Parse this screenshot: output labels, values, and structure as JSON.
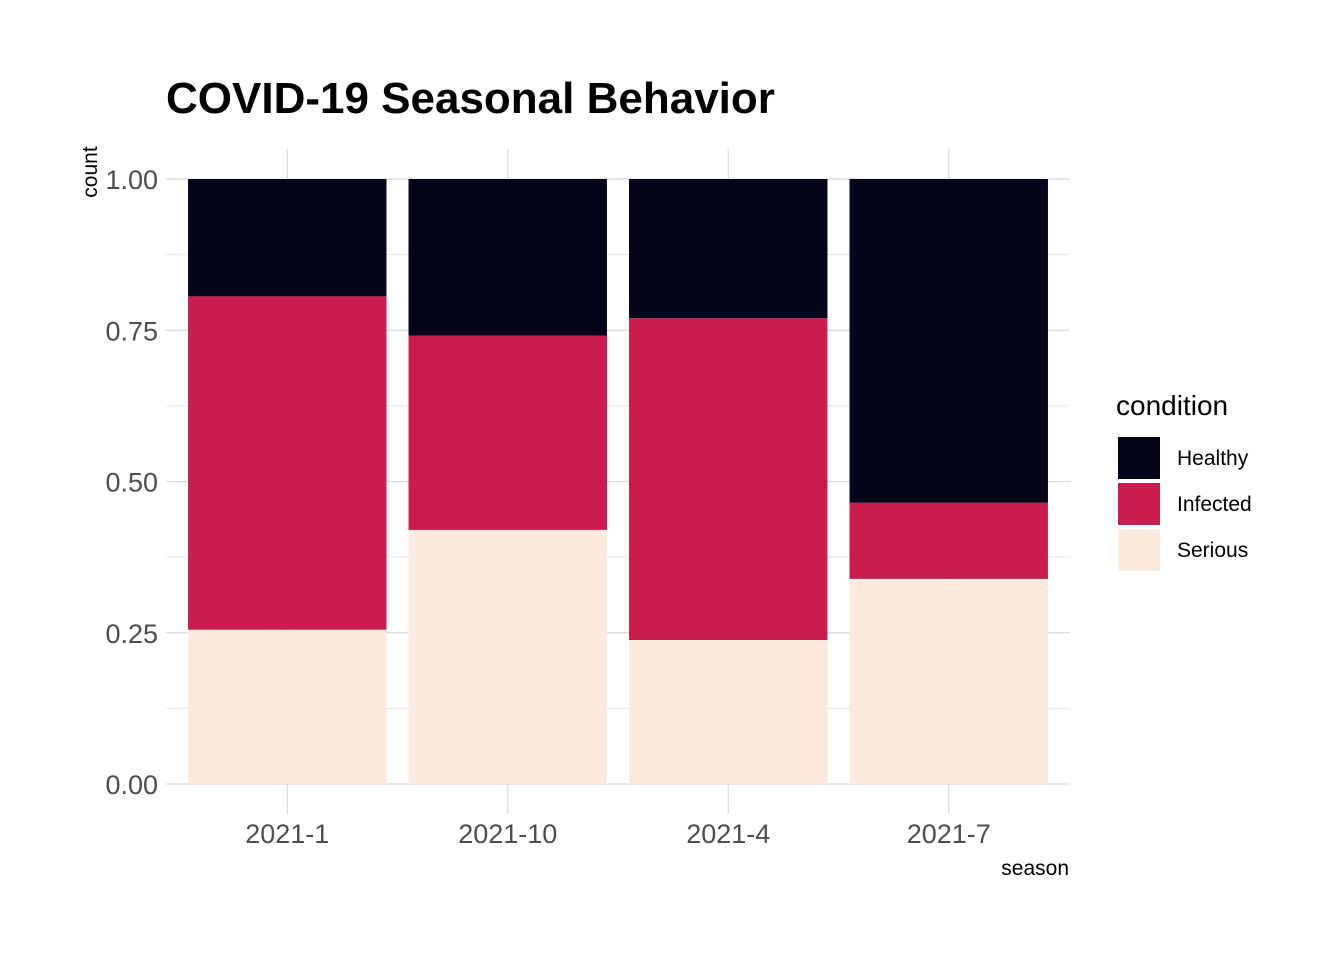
{
  "chart_data": {
    "type": "bar",
    "stacked": true,
    "title": "COVID-19 Seasonal Behavior",
    "xlabel": "season",
    "ylabel": "count",
    "ylim": [
      0,
      1
    ],
    "yticks": [
      "0.00",
      "0.25",
      "0.50",
      "0.75",
      "1.00"
    ],
    "categories": [
      "2021-1",
      "2021-10",
      "2021-4",
      "2021-7"
    ],
    "grid": true,
    "legend": {
      "title": "condition",
      "position": "right"
    },
    "series": [
      {
        "name": "Serious",
        "color": "#FAEBDE",
        "values": [
          0.255,
          0.42,
          0.238,
          0.339
        ]
      },
      {
        "name": "Infected",
        "color": "#CB1C4F",
        "values": [
          0.551,
          0.321,
          0.532,
          0.126
        ]
      },
      {
        "name": "Healthy",
        "color": "#03051A",
        "values": [
          0.194,
          0.259,
          0.23,
          0.535
        ]
      }
    ]
  }
}
